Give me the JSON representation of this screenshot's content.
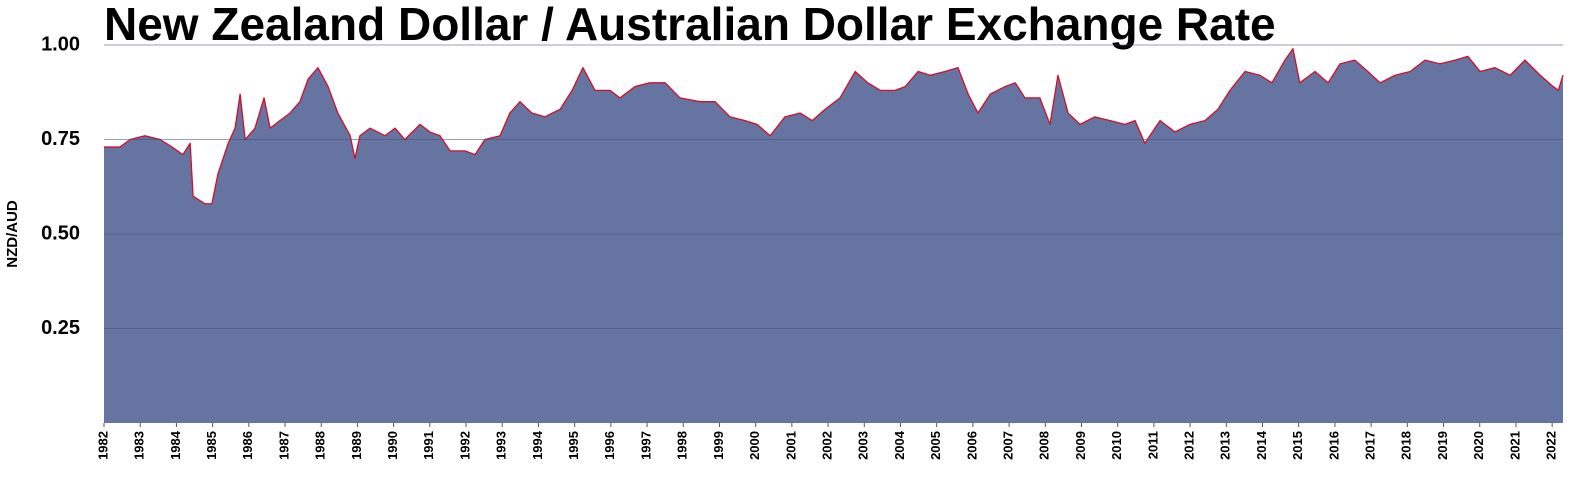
{
  "chart_data": {
    "type": "area",
    "title": "New Zealand Dollar / Australian Dollar Exchange Rate",
    "y_label": "NZD/AUD",
    "color": "#6574a0",
    "line_color": "#d0102a",
    "grid": true,
    "xlim": [
      1982,
      2022.3
    ],
    "xticks": [
      1982,
      1983,
      1984,
      1985,
      1986,
      1987,
      1988,
      1989,
      1990,
      1991,
      1992,
      1993,
      1994,
      1995,
      1996,
      1997,
      1998,
      1999,
      2000,
      2001,
      2002,
      2003,
      2004,
      2005,
      2006,
      2007,
      2008,
      2009,
      2010,
      2011,
      2012,
      2013,
      2014,
      2015,
      2016,
      2017,
      2018,
      2019,
      2020,
      2021,
      2022
    ],
    "ylim": [
      0,
      1
    ],
    "yticks": [
      0.25,
      {
        "value": 0.5,
        "label": "0.50"
      },
      0.75,
      {
        "value": 1,
        "label": "1.00"
      }
    ],
    "x": [
      1982.0,
      1982.44,
      1982.72,
      1983.13,
      1983.55,
      1983.88,
      1984.18,
      1984.38,
      1984.46,
      1984.79,
      1984.98,
      1985.15,
      1985.43,
      1985.62,
      1985.76,
      1985.9,
      1986.17,
      1986.42,
      1986.59,
      1986.86,
      1987.14,
      1987.41,
      1987.64,
      1987.91,
      1988.19,
      1988.46,
      1988.8,
      1988.93,
      1989.07,
      1989.35,
      1989.76,
      1990.04,
      1990.31,
      1990.73,
      1991.0,
      1991.28,
      1991.56,
      1991.97,
      1992.25,
      1992.52,
      1992.94,
      1993.21,
      1993.49,
      1993.82,
      1994.18,
      1994.6,
      1994.93,
      1995.23,
      1995.56,
      1995.98,
      1996.25,
      1996.67,
      1997.08,
      1997.5,
      1997.91,
      1998.46,
      1998.88,
      1999.29,
      1999.71,
      2000.04,
      2000.4,
      2000.81,
      2001.23,
      2001.56,
      2001.92,
      2002.33,
      2002.75,
      2003.1,
      2003.44,
      2003.85,
      2004.13,
      2004.49,
      2004.82,
      2005.23,
      2005.59,
      2005.87,
      2006.14,
      2006.48,
      2006.89,
      2007.17,
      2007.44,
      2007.85,
      2008.13,
      2008.35,
      2008.63,
      2008.96,
      2009.37,
      2009.79,
      2010.2,
      2010.48,
      2010.75,
      2011.17,
      2011.58,
      2012.0,
      2012.41,
      2012.77,
      2013.1,
      2013.52,
      2013.93,
      2014.26,
      2014.62,
      2014.84,
      2015.03,
      2015.45,
      2015.81,
      2016.14,
      2016.55,
      2016.91,
      2017.25,
      2017.66,
      2018.08,
      2018.49,
      2018.9,
      2019.32,
      2019.67,
      2020.01,
      2020.42,
      2020.84,
      2021.25,
      2021.67,
      2022.03,
      2022.17,
      2022.3
    ],
    "values": [
      0.73,
      0.73,
      0.75,
      0.76,
      0.75,
      0.73,
      0.71,
      0.74,
      0.6,
      0.58,
      0.58,
      0.66,
      0.74,
      0.78,
      0.87,
      0.75,
      0.78,
      0.86,
      0.78,
      0.8,
      0.82,
      0.85,
      0.91,
      0.94,
      0.89,
      0.82,
      0.76,
      0.7,
      0.76,
      0.78,
      0.76,
      0.78,
      0.75,
      0.79,
      0.77,
      0.76,
      0.72,
      0.72,
      0.71,
      0.75,
      0.76,
      0.82,
      0.85,
      0.82,
      0.81,
      0.83,
      0.88,
      0.94,
      0.88,
      0.88,
      0.86,
      0.89,
      0.9,
      0.9,
      0.86,
      0.85,
      0.85,
      0.81,
      0.8,
      0.79,
      0.76,
      0.81,
      0.82,
      0.8,
      0.83,
      0.86,
      0.93,
      0.9,
      0.88,
      0.88,
      0.89,
      0.93,
      0.92,
      0.93,
      0.94,
      0.87,
      0.82,
      0.87,
      0.89,
      0.9,
      0.86,
      0.86,
      0.79,
      0.92,
      0.82,
      0.79,
      0.81,
      0.8,
      0.79,
      0.8,
      0.74,
      0.8,
      0.77,
      0.79,
      0.8,
      0.83,
      0.88,
      0.93,
      0.92,
      0.9,
      0.96,
      0.99,
      0.9,
      0.93,
      0.9,
      0.95,
      0.96,
      0.93,
      0.9,
      0.92,
      0.93,
      0.96,
      0.95,
      0.96,
      0.97,
      0.93,
      0.94,
      0.92,
      0.96,
      0.92,
      0.89,
      0.88,
      0.92
    ]
  }
}
